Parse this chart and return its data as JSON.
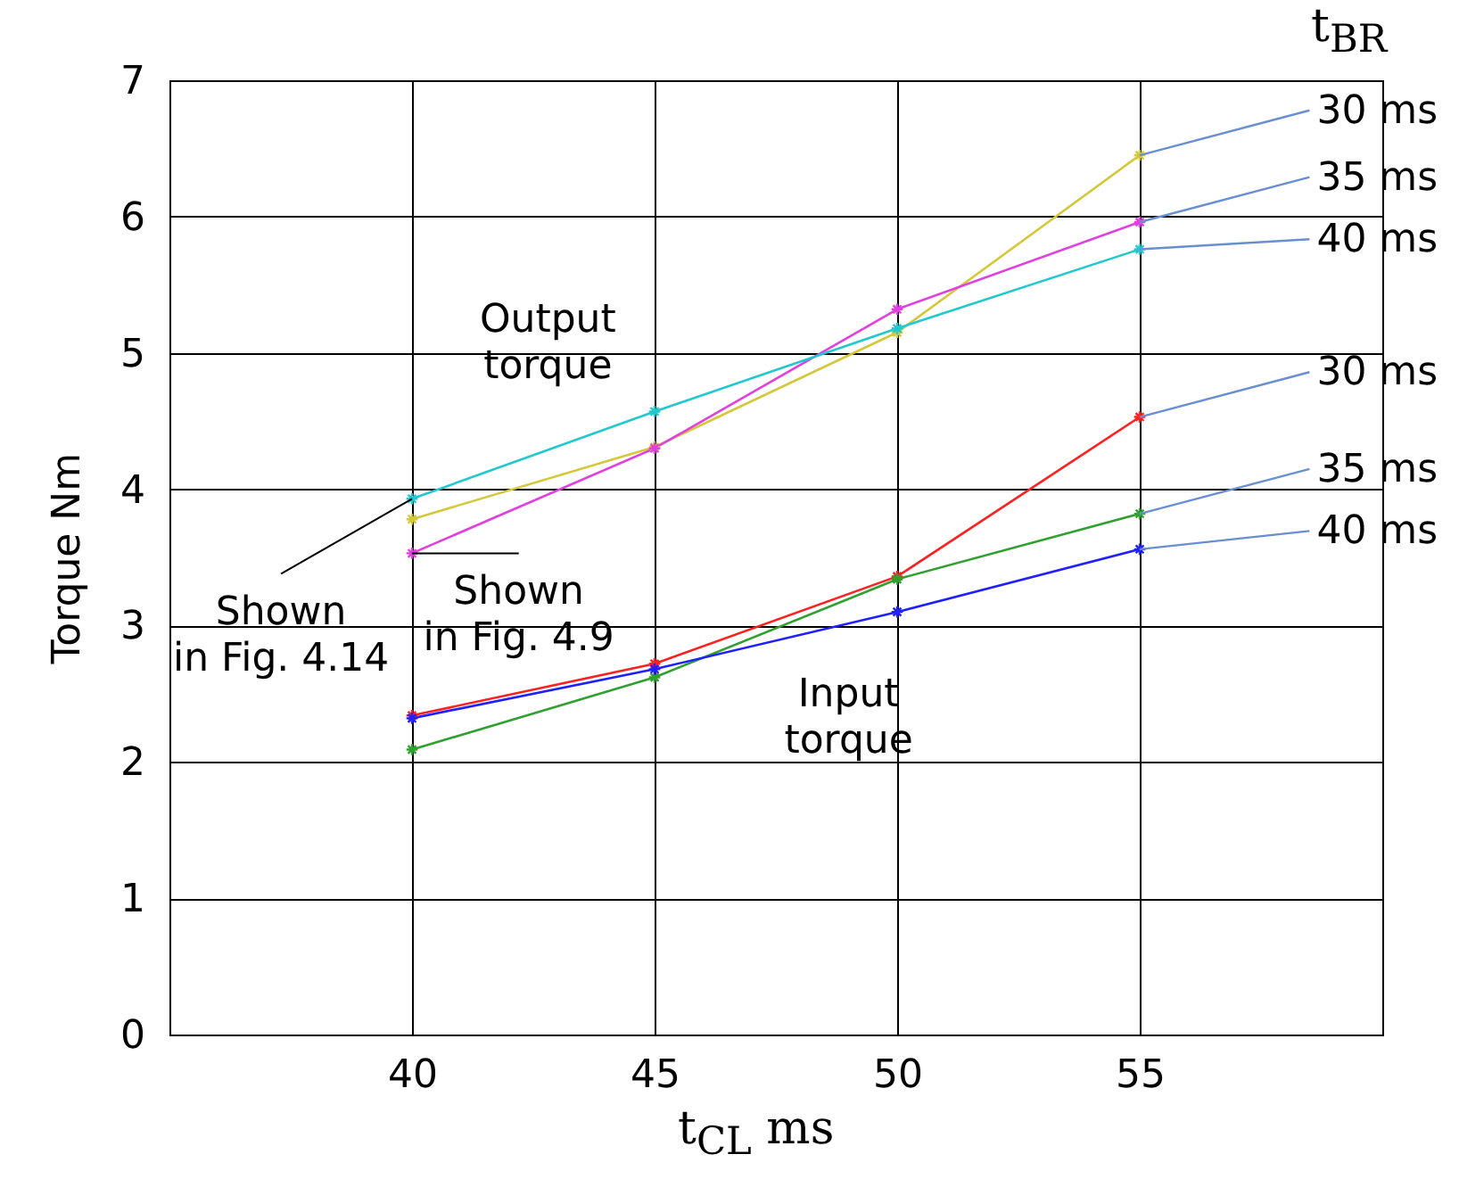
{
  "chart_data": {
    "type": "line",
    "xlabel": "t$_{CL}$ ms",
    "ylabel": "Torque Nm",
    "legend_title": "t$_{BR}$",
    "x": [
      40,
      45,
      50,
      55
    ],
    "xlim": [
      35,
      60
    ],
    "xticks": [
      40,
      45,
      50,
      55
    ],
    "ylim": [
      0,
      7
    ],
    "yticks": [
      0,
      1,
      2,
      3,
      4,
      5,
      6,
      7
    ],
    "grid": true,
    "marker": "cross",
    "series": [
      {
        "name": "30 ms",
        "color": "#d4c83a",
        "values": [
          3.78,
          4.31,
          5.15,
          6.45
        ]
      },
      {
        "name": "35 ms",
        "color": "#e040e0",
        "values": [
          3.53,
          4.3,
          5.32,
          5.96
        ]
      },
      {
        "name": "40 ms",
        "color": "#20c8d0",
        "values": [
          3.93,
          4.57,
          5.18,
          5.76
        ]
      },
      {
        "name": "30 ms",
        "color": "#ff2020",
        "values": [
          2.34,
          2.72,
          3.36,
          4.53
        ]
      },
      {
        "name": "35 ms",
        "color": "#30a030",
        "values": [
          2.09,
          2.62,
          3.34,
          3.82
        ]
      },
      {
        "name": "40 ms",
        "color": "#2020ff",
        "values": [
          2.32,
          2.68,
          3.1,
          3.56
        ]
      }
    ],
    "annotations": [
      {
        "text": "Shown in Fig. 4.14",
        "x": 40,
        "y": 3.93
      },
      {
        "text": "Shown in Fig. 4.9",
        "x": 40,
        "y": 3.53
      },
      "Output torque",
      "Input torque"
    ]
  }
}
